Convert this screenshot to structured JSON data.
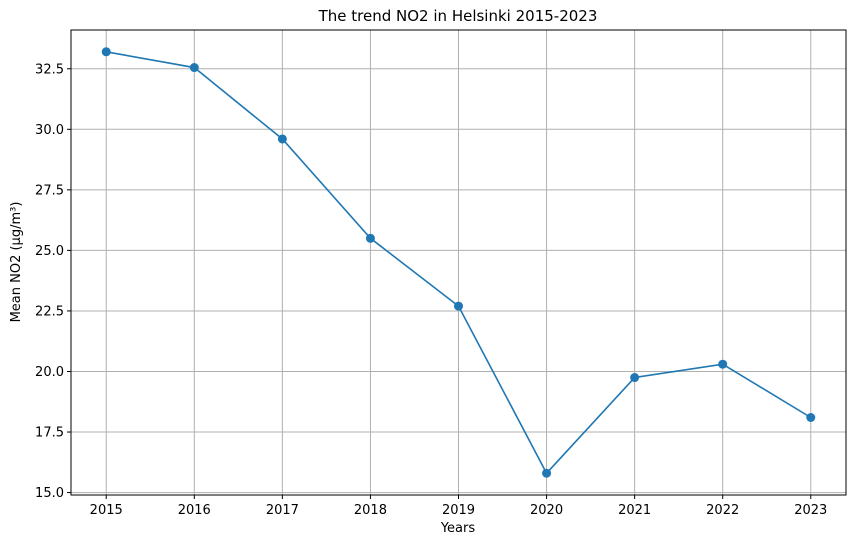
{
  "chart_data": {
    "type": "line",
    "title": "The trend NO2 in Helsinki 2015-2023",
    "xlabel": "Years",
    "ylabel": "Mean NO2 (µg/m³)",
    "x": [
      2015,
      2016,
      2017,
      2018,
      2019,
      2020,
      2021,
      2022,
      2023
    ],
    "series": [
      {
        "values": [
          33.2,
          32.55,
          29.6,
          25.5,
          22.7,
          15.8,
          19.75,
          20.3,
          18.1
        ]
      }
    ],
    "x_ticks": [
      "2015",
      "2016",
      "2017",
      "2018",
      "2019",
      "2020",
      "2021",
      "2022",
      "2023"
    ],
    "y_ticks": [
      "15.0",
      "17.5",
      "20.0",
      "22.5",
      "25.0",
      "27.5",
      "30.0",
      "32.5"
    ],
    "xlim": [
      2014.6,
      2023.4
    ],
    "ylim": [
      14.9,
      34.1
    ],
    "grid": true,
    "line_color": "#1f77b4",
    "marker": "circle"
  }
}
